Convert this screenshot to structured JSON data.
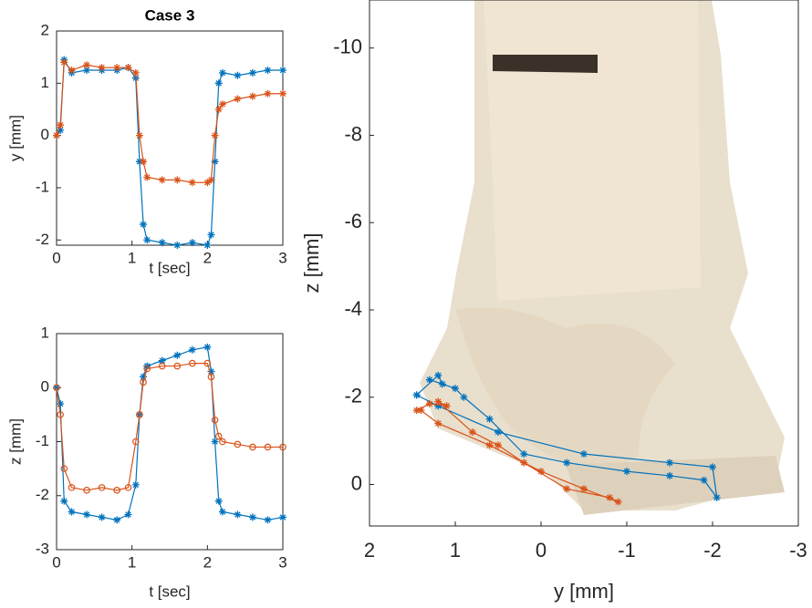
{
  "chart_data": [
    {
      "type": "line",
      "title": "Case 3",
      "xlabel": "t [sec]",
      "ylabel": "y [mm]",
      "xlim": [
        0,
        3
      ],
      "ylim": [
        -2.1,
        2
      ],
      "xticks": [
        0,
        1,
        2,
        3
      ],
      "yticks": [
        -2,
        -1,
        0,
        1,
        2
      ],
      "x": [
        0,
        0.05,
        0.1,
        0.2,
        0.4,
        0.6,
        0.8,
        0.95,
        1.05,
        1.1,
        1.15,
        1.2,
        1.4,
        1.6,
        1.8,
        2.0,
        2.05,
        2.1,
        2.15,
        2.2,
        2.4,
        2.6,
        2.8,
        3.0
      ],
      "series": [
        {
          "color": "#0072bd",
          "marker": "star",
          "values": [
            0,
            0.1,
            1.45,
            1.2,
            1.25,
            1.25,
            1.25,
            1.3,
            1.1,
            -0.5,
            -1.7,
            -2.0,
            -2.05,
            -2.1,
            -2.05,
            -2.1,
            -1.9,
            -0.5,
            1.0,
            1.2,
            1.15,
            1.2,
            1.25,
            1.25
          ]
        },
        {
          "color": "#d95319",
          "marker": "star",
          "values": [
            0,
            0.2,
            1.4,
            1.25,
            1.35,
            1.3,
            1.3,
            1.3,
            1.2,
            0,
            -0.5,
            -0.8,
            -0.85,
            -0.85,
            -0.9,
            -0.9,
            -0.85,
            0,
            0.5,
            0.6,
            0.7,
            0.75,
            0.8,
            0.8
          ]
        }
      ]
    },
    {
      "type": "line",
      "xlabel": "t [sec]",
      "ylabel": "z [mm]",
      "xlim": [
        0,
        3
      ],
      "ylim": [
        -3,
        1
      ],
      "xticks": [
        0,
        1,
        2,
        3
      ],
      "yticks": [
        -3,
        -2,
        -1,
        0,
        1
      ],
      "x": [
        0,
        0.05,
        0.1,
        0.2,
        0.4,
        0.6,
        0.8,
        0.95,
        1.05,
        1.1,
        1.15,
        1.2,
        1.4,
        1.6,
        1.8,
        2.0,
        2.05,
        2.1,
        2.15,
        2.2,
        2.4,
        2.6,
        2.8,
        3.0
      ],
      "series": [
        {
          "color": "#0072bd",
          "marker": "star",
          "values": [
            0,
            -0.3,
            -2.1,
            -2.3,
            -2.35,
            -2.4,
            -2.45,
            -2.35,
            -1.8,
            -0.5,
            0.2,
            0.4,
            0.5,
            0.6,
            0.7,
            0.75,
            0.3,
            -1.0,
            -2.1,
            -2.3,
            -2.35,
            -2.4,
            -2.45,
            -2.4
          ]
        },
        {
          "color": "#d95319",
          "marker": "circle",
          "values": [
            0,
            -0.5,
            -1.5,
            -1.85,
            -1.9,
            -1.85,
            -1.9,
            -1.85,
            -1.0,
            -0.5,
            0.1,
            0.35,
            0.4,
            0.4,
            0.45,
            0.45,
            0.2,
            -0.6,
            -0.9,
            -1.0,
            -1.05,
            -1.1,
            -1.1,
            -1.1
          ]
        }
      ]
    },
    {
      "type": "trajectory",
      "xlabel": "y [mm]",
      "ylabel": "z [mm]",
      "xlim": [
        2,
        -3
      ],
      "ylim": [
        0.95,
        -11.1
      ],
      "xticks": [
        2,
        1,
        0,
        -1,
        -2,
        -3
      ],
      "yticks": [
        -10,
        -8,
        -6,
        -4,
        -2,
        0
      ],
      "series": [
        {
          "color": "#0072bd",
          "marker": "star",
          "x": [
            1.45,
            1.2,
            1.15,
            1.3,
            1.0,
            0.9,
            0.6,
            0.2,
            -0.3,
            -1.0,
            -1.5,
            -1.9,
            -2.05,
            -2.0,
            -1.5,
            -0.5,
            0.5,
            1.2,
            1.45
          ],
          "values": [
            -2.05,
            -2.5,
            -2.3,
            -2.4,
            -2.2,
            -2.0,
            -1.5,
            -0.7,
            -0.5,
            -0.3,
            -0.2,
            -0.1,
            0.3,
            -0.4,
            -0.5,
            -0.7,
            -1.2,
            -1.8,
            -2.05
          ]
        },
        {
          "color": "#d95319",
          "marker": "star",
          "x": [
            1.45,
            1.3,
            1.1,
            1.2,
            0.8,
            0.5,
            0.2,
            -0.3,
            -0.8,
            -0.9,
            -0.5,
            0,
            0.6,
            1.2,
            1.4
          ],
          "values": [
            -1.7,
            -1.85,
            -1.8,
            -1.9,
            -1.2,
            -0.9,
            -0.5,
            0.1,
            0.3,
            0.4,
            0.1,
            -0.3,
            -0.9,
            -1.4,
            -1.7
          ]
        }
      ]
    }
  ]
}
